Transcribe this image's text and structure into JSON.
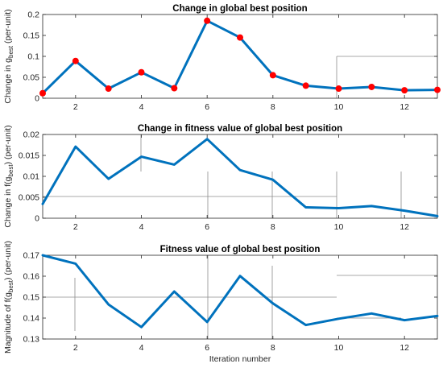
{
  "chart_data": [
    {
      "type": "line",
      "title": "Change in global best position",
      "ylabel_parts": [
        "Change in g",
        "best",
        " (per-unit)"
      ],
      "xlabel": "",
      "x": [
        1,
        2,
        3,
        4,
        5,
        6,
        7,
        8,
        9,
        10,
        11,
        12,
        13
      ],
      "xlim": [
        1,
        13
      ],
      "xticks": [
        2,
        4,
        6,
        8,
        10,
        12
      ],
      "ylim": [
        0,
        0.2
      ],
      "yticks": [
        0,
        0.05,
        0.1,
        0.15,
        0.2
      ],
      "ytick_labels": [
        "0",
        "0.05",
        "0.1",
        "0.15",
        "0.2"
      ],
      "markers": true,
      "series": [
        {
          "values": [
            0.012,
            0.089,
            0.023,
            0.062,
            0.024,
            0.185,
            0.145,
            0.055,
            0.03,
            0.023,
            0.027,
            0.019,
            0.02
          ],
          "color": "#0072BD",
          "marker_color": "#FF0000"
        }
      ]
    },
    {
      "type": "line",
      "title": "Change in fitness value of global best position",
      "ylabel_parts": [
        "Change in f(g",
        "best",
        ") (per-unit)"
      ],
      "xlabel": "",
      "x": [
        1,
        2,
        3,
        4,
        5,
        6,
        7,
        8,
        9,
        10,
        11,
        12,
        13
      ],
      "xlim": [
        1,
        13
      ],
      "xticks": [
        2,
        4,
        6,
        8,
        10,
        12
      ],
      "ylim": [
        0,
        0.02
      ],
      "yticks": [
        0,
        0.005,
        0.01,
        0.015,
        0.02
      ],
      "ytick_labels": [
        "0",
        "0.005",
        "0.01",
        "0.015",
        "0.02"
      ],
      "markers": false,
      "series": [
        {
          "values": [
            0.0034,
            0.0171,
            0.0094,
            0.0147,
            0.0128,
            0.0189,
            0.0115,
            0.0092,
            0.0026,
            0.0024,
            0.0029,
            0.0018,
            0.0005
          ],
          "color": "#0072BD"
        }
      ]
    },
    {
      "type": "line",
      "title": "Fitness value of global best position",
      "ylabel_parts": [
        "Magnitude of f(g",
        "best",
        ") (per-unit)"
      ],
      "xlabel": "Iteration number",
      "x": [
        1,
        2,
        3,
        4,
        5,
        6,
        7,
        8,
        9,
        10,
        11,
        12,
        13
      ],
      "xlim": [
        1,
        13
      ],
      "xticks": [
        2,
        4,
        6,
        8,
        10,
        12
      ],
      "ylim": [
        0.13,
        0.17
      ],
      "yticks": [
        0.13,
        0.14,
        0.15,
        0.16,
        0.17
      ],
      "ytick_labels": [
        "0.13",
        "0.14",
        "0.15",
        "0.16",
        "0.17"
      ],
      "markers": false,
      "series": [
        {
          "values": [
            0.17,
            0.166,
            0.1465,
            0.1357,
            0.1527,
            0.1381,
            0.1601,
            0.147,
            0.1367,
            0.1397,
            0.1422,
            0.139,
            0.141
          ],
          "color": "#0072BD"
        }
      ]
    }
  ]
}
